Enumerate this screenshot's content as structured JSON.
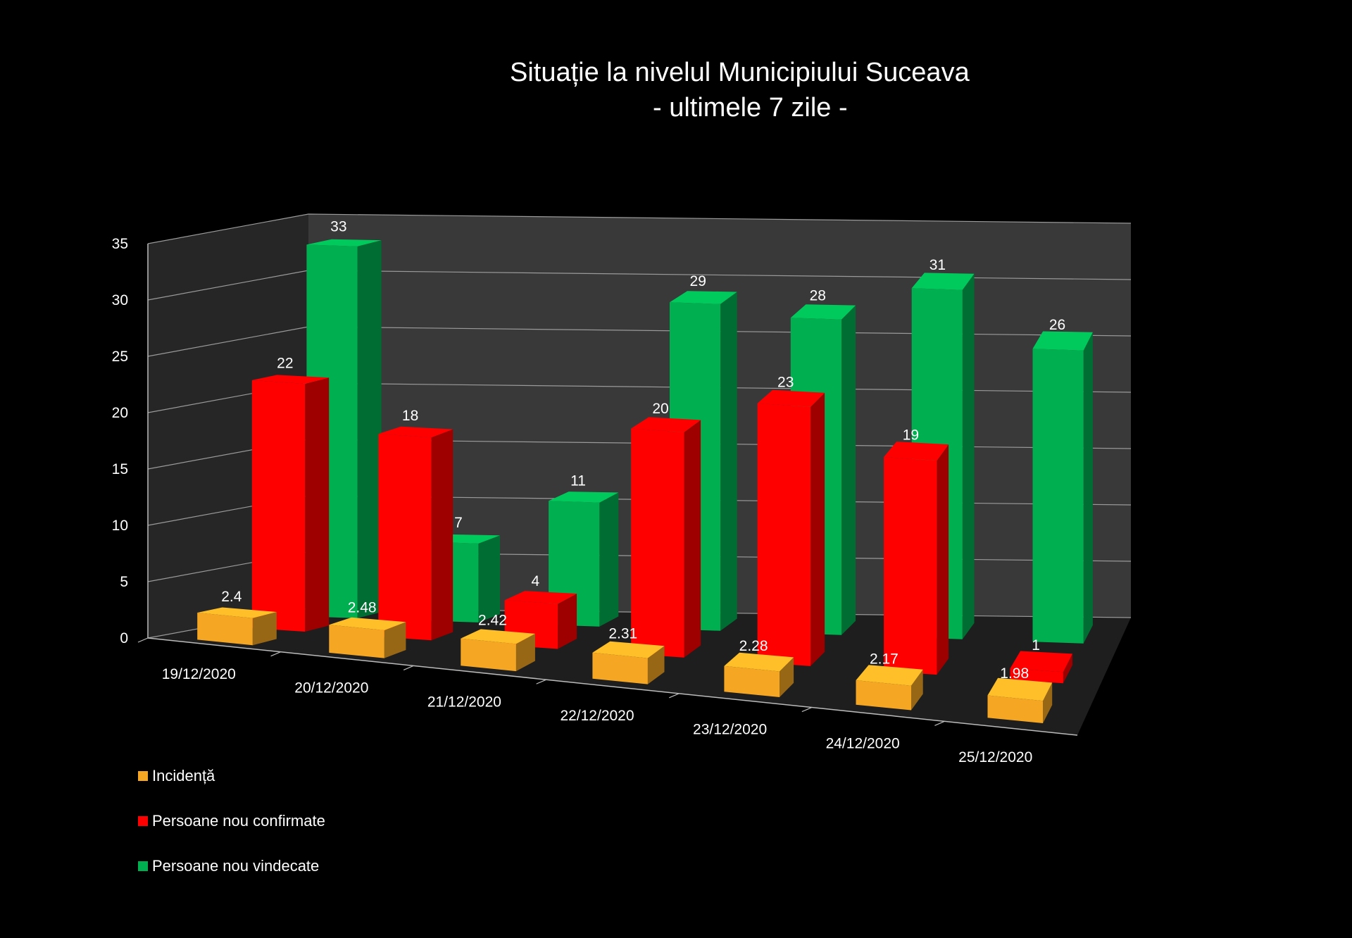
{
  "chart_data": {
    "type": "bar",
    "title": "Situație la nivelul Municipiului Suceava",
    "subtitle": "- ultimele 7 zile -",
    "categories": [
      "19/12/2020",
      "20/12/2020",
      "21/12/2020",
      "22/12/2020",
      "23/12/2020",
      "24/12/2020",
      "25/12/2020"
    ],
    "series": [
      {
        "name": "Incidență",
        "color": "#f5a623",
        "values": [
          2.4,
          2.48,
          2.42,
          2.31,
          2.28,
          2.17,
          1.98
        ],
        "labels": [
          "2.4",
          "2.48",
          "2.42",
          "2.31",
          "2.28",
          "2.17",
          "1.98"
        ]
      },
      {
        "name": "Persoane nou confirmate",
        "color": "#ff0000",
        "values": [
          22,
          18,
          4,
          20,
          23,
          19,
          1
        ],
        "labels": [
          "22",
          "18",
          "4",
          "20",
          "23",
          "19",
          "1"
        ]
      },
      {
        "name": "Persoane nou vindecate",
        "color": "#00b050",
        "values": [
          33,
          7,
          11,
          29,
          28,
          31,
          26
        ],
        "labels": [
          "33",
          "7",
          "11",
          "29",
          "28",
          "31",
          "26"
        ]
      }
    ],
    "yticks": [
      "0",
      "5",
      "10",
      "15",
      "20",
      "25",
      "30",
      "35"
    ],
    "ylim": [
      0,
      35
    ],
    "grid": true,
    "legend_position": "bottom-left",
    "style": "3d-clustered-column"
  }
}
